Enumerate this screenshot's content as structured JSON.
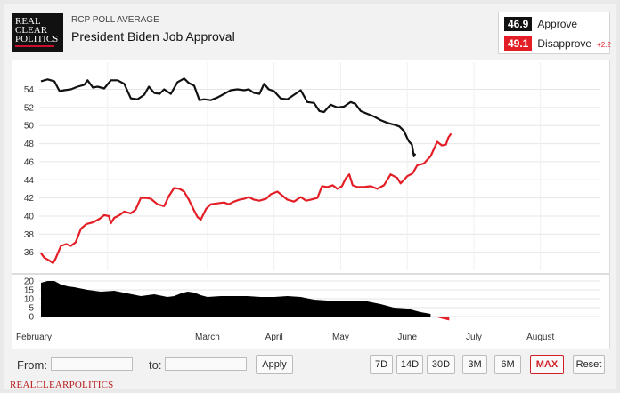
{
  "logo": {
    "line1": "REAL",
    "line2": "CLEAR",
    "line3": "POLITICS"
  },
  "header": {
    "supertitle": "RCP POLL AVERAGE",
    "title": "President Biden Job Approval"
  },
  "legend": {
    "approve": {
      "value": "46.9",
      "label": "Approve",
      "color": "#111111"
    },
    "disapprove": {
      "value": "49.1",
      "label": "Disapprove",
      "change": "+2.2",
      "color": "#e41e26"
    }
  },
  "controls": {
    "from_label": "From:",
    "to_label": "to:",
    "from_value": "",
    "to_value": "",
    "apply": "Apply",
    "ranges": [
      "7D",
      "14D",
      "30D",
      "3M",
      "6M",
      "MAX",
      "Reset"
    ],
    "active_range": "MAX"
  },
  "footer": {
    "text": "REALCLEARPOLITICS"
  },
  "chart_data": {
    "type": "line",
    "xlabels": [
      "February",
      "March",
      "April",
      "May",
      "June",
      "July",
      "August"
    ],
    "x_month_positions": [
      2.5,
      4,
      5,
      6,
      7,
      8,
      9
    ],
    "x_range": [
      1.5,
      9.9
    ],
    "main_ylim": [
      34,
      57
    ],
    "main_yticks": [
      36,
      38,
      40,
      42,
      44,
      46,
      48,
      50,
      52,
      54
    ],
    "spread_ylim": [
      -3,
      22
    ],
    "spread_yticks": [
      0,
      5,
      10,
      15,
      20
    ],
    "series": [
      {
        "name": "Approve",
        "color": "#111111",
        "points": [
          [
            1.5,
            54.9
          ],
          [
            1.6,
            55.1
          ],
          [
            1.7,
            54.9
          ],
          [
            1.78,
            53.8
          ],
          [
            1.85,
            53.9
          ],
          [
            1.95,
            54.0
          ],
          [
            2.05,
            54.3
          ],
          [
            2.15,
            54.5
          ],
          [
            2.2,
            55.0
          ],
          [
            2.28,
            54.2
          ],
          [
            2.35,
            54.3
          ],
          [
            2.45,
            54.1
          ],
          [
            2.55,
            55.0
          ],
          [
            2.65,
            55.0
          ],
          [
            2.75,
            54.6
          ],
          [
            2.85,
            53.0
          ],
          [
            2.95,
            52.9
          ],
          [
            3.05,
            53.4
          ],
          [
            3.12,
            54.3
          ],
          [
            3.2,
            53.6
          ],
          [
            3.28,
            53.5
          ],
          [
            3.35,
            54.0
          ],
          [
            3.45,
            53.5
          ],
          [
            3.55,
            54.8
          ],
          [
            3.65,
            55.2
          ],
          [
            3.72,
            54.7
          ],
          [
            3.8,
            54.4
          ],
          [
            3.88,
            52.8
          ],
          [
            3.95,
            52.9
          ],
          [
            4.05,
            52.8
          ],
          [
            4.15,
            53.1
          ],
          [
            4.25,
            53.5
          ],
          [
            4.35,
            53.9
          ],
          [
            4.45,
            54.0
          ],
          [
            4.55,
            53.9
          ],
          [
            4.62,
            54.0
          ],
          [
            4.7,
            53.6
          ],
          [
            4.78,
            53.5
          ],
          [
            4.85,
            54.6
          ],
          [
            4.92,
            54.0
          ],
          [
            5.0,
            53.8
          ],
          [
            5.1,
            53.0
          ],
          [
            5.2,
            52.9
          ],
          [
            5.3,
            53.4
          ],
          [
            5.4,
            53.9
          ],
          [
            5.5,
            52.6
          ],
          [
            5.6,
            52.5
          ],
          [
            5.68,
            51.6
          ],
          [
            5.75,
            51.5
          ],
          [
            5.85,
            52.3
          ],
          [
            5.95,
            52.0
          ],
          [
            6.05,
            52.1
          ],
          [
            6.15,
            52.6
          ],
          [
            6.22,
            52.4
          ],
          [
            6.3,
            51.6
          ],
          [
            6.4,
            51.3
          ],
          [
            6.5,
            51.0
          ],
          [
            6.6,
            50.6
          ],
          [
            6.7,
            50.3
          ],
          [
            6.8,
            50.1
          ],
          [
            6.88,
            49.9
          ],
          [
            6.95,
            49.4
          ],
          [
            7.0,
            48.6
          ],
          [
            7.03,
            48.2
          ],
          [
            7.07,
            47.9
          ],
          [
            7.1,
            46.6
          ],
          [
            7.12,
            46.9
          ]
        ]
      },
      {
        "name": "Disapprove",
        "color": "#e41e26",
        "points": [
          [
            1.5,
            35.9
          ],
          [
            1.55,
            35.4
          ],
          [
            1.62,
            35.1
          ],
          [
            1.68,
            34.8
          ],
          [
            1.72,
            35.3
          ],
          [
            1.8,
            36.7
          ],
          [
            1.88,
            36.9
          ],
          [
            1.95,
            36.7
          ],
          [
            2.02,
            37.1
          ],
          [
            2.1,
            38.6
          ],
          [
            2.18,
            39.1
          ],
          [
            2.28,
            39.3
          ],
          [
            2.38,
            39.7
          ],
          [
            2.45,
            40.1
          ],
          [
            2.52,
            40.0
          ],
          [
            2.55,
            39.2
          ],
          [
            2.6,
            39.8
          ],
          [
            2.68,
            40.1
          ],
          [
            2.75,
            40.5
          ],
          [
            2.85,
            40.3
          ],
          [
            2.92,
            40.7
          ],
          [
            3.0,
            42.0
          ],
          [
            3.08,
            42.0
          ],
          [
            3.15,
            41.9
          ],
          [
            3.25,
            41.3
          ],
          [
            3.35,
            41.1
          ],
          [
            3.42,
            42.2
          ],
          [
            3.5,
            43.1
          ],
          [
            3.58,
            43.0
          ],
          [
            3.65,
            42.7
          ],
          [
            3.72,
            41.8
          ],
          [
            3.8,
            40.6
          ],
          [
            3.85,
            39.9
          ],
          [
            3.9,
            39.6
          ],
          [
            3.98,
            40.8
          ],
          [
            4.05,
            41.3
          ],
          [
            4.15,
            41.4
          ],
          [
            4.25,
            41.5
          ],
          [
            4.32,
            41.3
          ],
          [
            4.4,
            41.6
          ],
          [
            4.48,
            41.8
          ],
          [
            4.55,
            41.9
          ],
          [
            4.62,
            42.1
          ],
          [
            4.7,
            41.8
          ],
          [
            4.78,
            41.7
          ],
          [
            4.88,
            41.9
          ],
          [
            4.95,
            42.4
          ],
          [
            5.05,
            42.7
          ],
          [
            5.12,
            42.3
          ],
          [
            5.2,
            41.8
          ],
          [
            5.3,
            41.6
          ],
          [
            5.4,
            42.1
          ],
          [
            5.48,
            41.7
          ],
          [
            5.55,
            41.8
          ],
          [
            5.65,
            42.0
          ],
          [
            5.72,
            43.3
          ],
          [
            5.8,
            43.2
          ],
          [
            5.88,
            43.4
          ],
          [
            5.95,
            43.0
          ],
          [
            6.02,
            43.3
          ],
          [
            6.08,
            44.2
          ],
          [
            6.13,
            44.6
          ],
          [
            6.18,
            43.4
          ],
          [
            6.25,
            43.2
          ],
          [
            6.35,
            43.2
          ],
          [
            6.45,
            43.3
          ],
          [
            6.55,
            43.0
          ],
          [
            6.65,
            43.4
          ],
          [
            6.75,
            44.6
          ],
          [
            6.85,
            44.2
          ],
          [
            6.9,
            43.6
          ],
          [
            6.95,
            44.0
          ],
          [
            7.0,
            44.4
          ],
          [
            7.08,
            44.7
          ],
          [
            7.15,
            45.6
          ],
          [
            7.25,
            45.8
          ],
          [
            7.35,
            46.6
          ],
          [
            7.45,
            48.2
          ],
          [
            7.52,
            47.8
          ],
          [
            7.58,
            47.9
          ],
          [
            7.62,
            48.7
          ],
          [
            7.66,
            49.1
          ]
        ]
      }
    ],
    "spread": [
      [
        1.5,
        19.0
      ],
      [
        1.6,
        20.0
      ],
      [
        1.7,
        20.0
      ],
      [
        1.8,
        18.0
      ],
      [
        1.9,
        17.0
      ],
      [
        2.0,
        16.5
      ],
      [
        2.2,
        15.0
      ],
      [
        2.4,
        14.0
      ],
      [
        2.6,
        14.5
      ],
      [
        2.8,
        13.0
      ],
      [
        3.0,
        11.5
      ],
      [
        3.2,
        12.5
      ],
      [
        3.4,
        11.0
      ],
      [
        3.5,
        11.5
      ],
      [
        3.6,
        13.0
      ],
      [
        3.7,
        14.0
      ],
      [
        3.8,
        13.5
      ],
      [
        3.9,
        12.0
      ],
      [
        4.0,
        11.0
      ],
      [
        4.2,
        11.5
      ],
      [
        4.4,
        11.5
      ],
      [
        4.6,
        11.5
      ],
      [
        4.8,
        11.0
      ],
      [
        5.0,
        11.0
      ],
      [
        5.2,
        11.5
      ],
      [
        5.4,
        11.0
      ],
      [
        5.6,
        9.5
      ],
      [
        5.8,
        9.0
      ],
      [
        6.0,
        8.5
      ],
      [
        6.2,
        8.5
      ],
      [
        6.4,
        8.5
      ],
      [
        6.6,
        7.0
      ],
      [
        6.8,
        5.0
      ],
      [
        7.0,
        4.5
      ],
      [
        7.2,
        2.5
      ],
      [
        7.35,
        1.5
      ],
      [
        7.45,
        -0.5
      ],
      [
        7.55,
        -1.5
      ],
      [
        7.63,
        -2.2
      ]
    ]
  }
}
